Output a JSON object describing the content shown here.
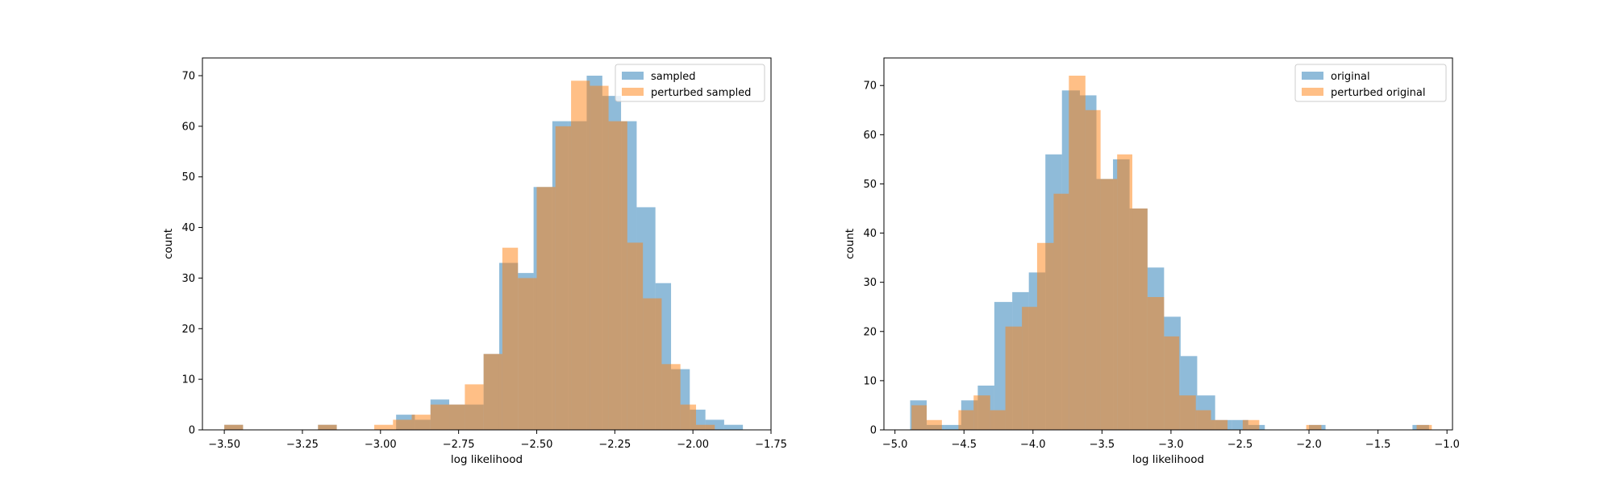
{
  "chart_data": [
    {
      "type": "histogram",
      "xlabel": "log likelihood",
      "ylabel": "count",
      "xlim": [
        -3.57,
        -1.75
      ],
      "ylim": [
        0,
        73.5
      ],
      "xticks": [
        -3.5,
        -3.25,
        -3.0,
        -2.75,
        -2.5,
        -2.25,
        -2.0,
        -1.75
      ],
      "xtick_labels": [
        "−3.50",
        "−3.25",
        "−3.00",
        "−2.75",
        "−2.50",
        "−2.25",
        "−2.00",
        "−1.75"
      ],
      "yticks": [
        0,
        10,
        20,
        30,
        40,
        50,
        60,
        70
      ],
      "ytick_labels": [
        "0",
        "10",
        "20",
        "30",
        "40",
        "50",
        "60",
        "70"
      ],
      "legend_position": "top-right",
      "grid": false,
      "series": [
        {
          "name": "sampled",
          "color": "#1f77b4",
          "bins": [
            [
              -3.5,
              -3.44,
              1
            ],
            [
              -3.2,
              -3.14,
              1
            ],
            [
              -2.95,
              -2.89,
              3
            ],
            [
              -2.89,
              -2.84,
              2
            ],
            [
              -2.84,
              -2.78,
              6
            ],
            [
              -2.78,
              -2.73,
              5
            ],
            [
              -2.73,
              -2.67,
              5
            ],
            [
              -2.67,
              -2.62,
              15
            ],
            [
              -2.62,
              -2.56,
              33
            ],
            [
              -2.56,
              -2.51,
              31
            ],
            [
              -2.51,
              -2.45,
              48
            ],
            [
              -2.45,
              -2.4,
              61
            ],
            [
              -2.4,
              -2.34,
              61
            ],
            [
              -2.34,
              -2.29,
              70
            ],
            [
              -2.29,
              -2.23,
              66
            ],
            [
              -2.23,
              -2.18,
              61
            ],
            [
              -2.18,
              -2.12,
              44
            ],
            [
              -2.12,
              -2.07,
              29
            ],
            [
              -2.07,
              -2.01,
              12
            ],
            [
              -2.01,
              -1.96,
              4
            ],
            [
              -1.96,
              -1.9,
              2
            ],
            [
              -1.9,
              -1.84,
              1
            ]
          ]
        },
        {
          "name": "perturbed sampled",
          "color": "#ff7f0e",
          "bins": [
            [
              -3.5,
              -3.44,
              1
            ],
            [
              -3.2,
              -3.14,
              1
            ],
            [
              -3.02,
              -2.96,
              1
            ],
            [
              -2.96,
              -2.9,
              2
            ],
            [
              -2.9,
              -2.84,
              3
            ],
            [
              -2.84,
              -2.78,
              5
            ],
            [
              -2.78,
              -2.73,
              5
            ],
            [
              -2.73,
              -2.67,
              9
            ],
            [
              -2.67,
              -2.61,
              15
            ],
            [
              -2.61,
              -2.56,
              36
            ],
            [
              -2.56,
              -2.5,
              30
            ],
            [
              -2.5,
              -2.44,
              48
            ],
            [
              -2.44,
              -2.39,
              60
            ],
            [
              -2.39,
              -2.33,
              69
            ],
            [
              -2.33,
              -2.27,
              68
            ],
            [
              -2.27,
              -2.21,
              61
            ],
            [
              -2.21,
              -2.16,
              37
            ],
            [
              -2.16,
              -2.1,
              26
            ],
            [
              -2.1,
              -2.04,
              13
            ],
            [
              -2.04,
              -1.99,
              5
            ],
            [
              -1.99,
              -1.93,
              1
            ]
          ]
        }
      ]
    },
    {
      "type": "histogram",
      "xlabel": "log likelihood",
      "ylabel": "count",
      "xlim": [
        -5.08,
        -0.96
      ],
      "ylim": [
        0,
        75.6
      ],
      "xticks": [
        -5.0,
        -4.5,
        -4.0,
        -3.5,
        -3.0,
        -2.5,
        -2.0,
        -1.5,
        -1.0
      ],
      "xtick_labels": [
        "−5.0",
        "−4.5",
        "−4.0",
        "−3.5",
        "−3.0",
        "−2.5",
        "−2.0",
        "−1.5",
        "−1.0"
      ],
      "yticks": [
        0,
        10,
        20,
        30,
        40,
        50,
        60,
        70
      ],
      "ytick_labels": [
        "0",
        "10",
        "20",
        "30",
        "40",
        "50",
        "60",
        "70"
      ],
      "legend_position": "top-right",
      "grid": false,
      "series": [
        {
          "name": "original",
          "color": "#1f77b4",
          "bins": [
            [
              -4.89,
              -4.77,
              6
            ],
            [
              -4.77,
              -4.64,
              1
            ],
            [
              -4.64,
              -4.52,
              1
            ],
            [
              -4.52,
              -4.4,
              6
            ],
            [
              -4.4,
              -4.28,
              9
            ],
            [
              -4.28,
              -4.15,
              26
            ],
            [
              -4.15,
              -4.03,
              28
            ],
            [
              -4.03,
              -3.91,
              32
            ],
            [
              -3.91,
              -3.79,
              56
            ],
            [
              -3.79,
              -3.66,
              69
            ],
            [
              -3.66,
              -3.54,
              68
            ],
            [
              -3.54,
              -3.42,
              51
            ],
            [
              -3.42,
              -3.3,
              55
            ],
            [
              -3.3,
              -3.17,
              45
            ],
            [
              -3.17,
              -3.05,
              33
            ],
            [
              -3.05,
              -2.93,
              23
            ],
            [
              -2.93,
              -2.81,
              15
            ],
            [
              -2.81,
              -2.68,
              7
            ],
            [
              -2.68,
              -2.56,
              2
            ],
            [
              -2.56,
              -2.44,
              2
            ],
            [
              -2.44,
              -2.32,
              1
            ],
            [
              -2.0,
              -1.88,
              1
            ],
            [
              -1.25,
              -1.13,
              1
            ]
          ]
        },
        {
          "name": "perturbed original",
          "color": "#ff7f0e",
          "bins": [
            [
              -4.88,
              -4.77,
              5
            ],
            [
              -4.77,
              -4.66,
              2
            ],
            [
              -4.54,
              -4.43,
              4
            ],
            [
              -4.43,
              -4.31,
              7
            ],
            [
              -4.31,
              -4.2,
              4
            ],
            [
              -4.2,
              -4.08,
              21
            ],
            [
              -4.08,
              -3.97,
              25
            ],
            [
              -3.97,
              -3.85,
              38
            ],
            [
              -3.85,
              -3.74,
              48
            ],
            [
              -3.74,
              -3.62,
              72
            ],
            [
              -3.62,
              -3.51,
              65
            ],
            [
              -3.51,
              -3.39,
              51
            ],
            [
              -3.39,
              -3.28,
              56
            ],
            [
              -3.28,
              -3.17,
              45
            ],
            [
              -3.17,
              -3.05,
              27
            ],
            [
              -3.05,
              -2.94,
              19
            ],
            [
              -2.94,
              -2.82,
              7
            ],
            [
              -2.82,
              -2.71,
              4
            ],
            [
              -2.71,
              -2.59,
              2
            ],
            [
              -2.48,
              -2.36,
              2
            ],
            [
              -2.02,
              -1.91,
              1
            ],
            [
              -1.22,
              -1.11,
              1
            ]
          ]
        }
      ]
    }
  ]
}
